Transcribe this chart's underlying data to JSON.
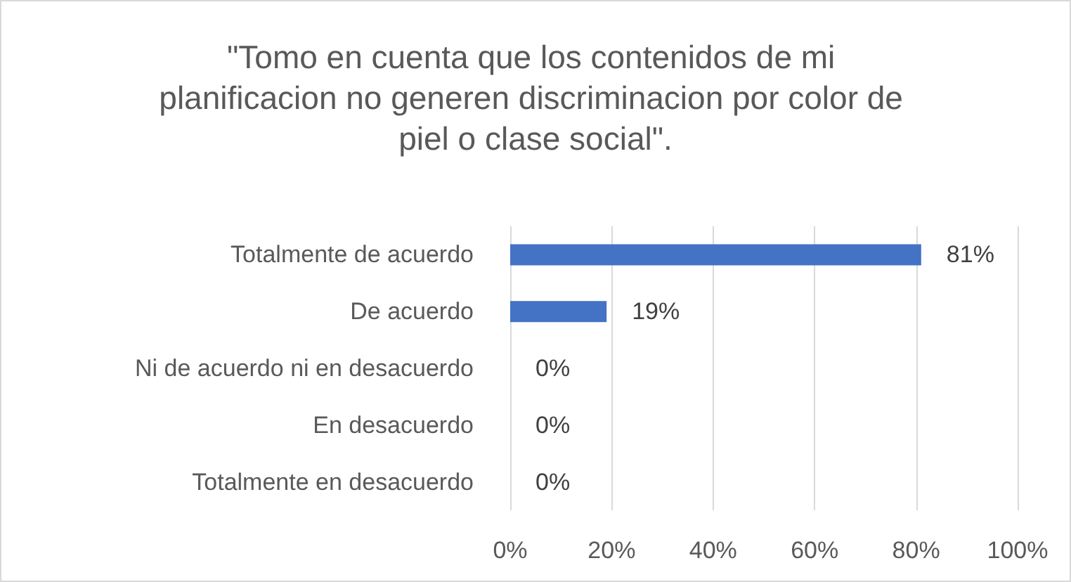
{
  "chart_data": {
    "type": "bar",
    "orientation": "horizontal",
    "title": "\"Tomo en cuenta que los contenidos de mi planificacion no generen discriminacion por color de piel o clase social\".",
    "categories": [
      "Totalmente de acuerdo",
      "De acuerdo",
      "Ni de acuerdo ni en desacuerdo",
      "En desacuerdo",
      "Totalmente en desacuerdo"
    ],
    "values": [
      81,
      19,
      0,
      0,
      0
    ],
    "value_labels": [
      "81%",
      "19%",
      "0%",
      "0%",
      "0%"
    ],
    "color": "#4472c4",
    "xlim": [
      0,
      100
    ],
    "xticks": [
      {
        "value": 0,
        "label": "0%"
      },
      {
        "value": 20,
        "label": "20%"
      },
      {
        "value": 40,
        "label": "40%"
      },
      {
        "value": 60,
        "label": "60%"
      },
      {
        "value": 80,
        "label": "80%"
      },
      {
        "value": 100,
        "label": "100%"
      }
    ],
    "grid": "x"
  }
}
